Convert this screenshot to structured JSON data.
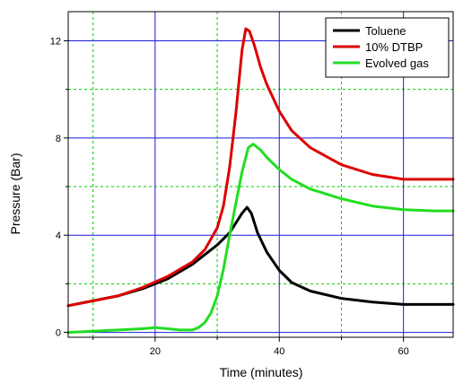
{
  "chart_data": {
    "type": "line",
    "title": "",
    "xlabel": "Time (minutes)",
    "ylabel": "Pressure (Bar)",
    "xlim": [
      6,
      68
    ],
    "ylim": [
      -0.2,
      13.2
    ],
    "grid": true,
    "legend_position": "top-right",
    "x_major_ticks": [
      20,
      40,
      60
    ],
    "x_minor_ticks": [
      10,
      30,
      50
    ],
    "y_major_ticks": [
      0,
      4,
      8,
      12
    ],
    "y_minor_ticks": [
      2,
      6,
      10
    ],
    "x_tick_labels": [
      "20",
      "40",
      "60"
    ],
    "y_tick_labels": [
      "0",
      "4",
      "8",
      "12"
    ],
    "colors": {
      "major_grid": "#1a1adc",
      "minor_grid": "#00cc00",
      "axes": "#000000"
    },
    "series": [
      {
        "name": "Toluene",
        "color": "#000000",
        "x": [
          6,
          10,
          14,
          18,
          22,
          26,
          28,
          30,
          32,
          33,
          34,
          34.8,
          35.5,
          36.5,
          38,
          40,
          42,
          45,
          50,
          55,
          60,
          65,
          68
        ],
        "y": [
          1.1,
          1.3,
          1.5,
          1.8,
          2.2,
          2.8,
          3.2,
          3.6,
          4.1,
          4.5,
          4.9,
          5.15,
          4.9,
          4.1,
          3.3,
          2.55,
          2.05,
          1.7,
          1.4,
          1.25,
          1.15,
          1.15,
          1.15
        ]
      },
      {
        "name": "10% DTBP",
        "color": "#dd0000",
        "x": [
          6,
          10,
          14,
          18,
          22,
          26,
          28,
          30,
          31,
          32,
          33,
          34,
          34.6,
          35.2,
          36,
          37,
          38,
          40,
          42,
          45,
          50,
          55,
          60,
          65,
          68
        ],
        "y": [
          1.1,
          1.3,
          1.5,
          1.85,
          2.3,
          2.9,
          3.4,
          4.3,
          5.2,
          6.8,
          9.0,
          11.6,
          12.5,
          12.4,
          11.8,
          10.9,
          10.2,
          9.1,
          8.3,
          7.6,
          6.9,
          6.5,
          6.3,
          6.3,
          6.3
        ]
      },
      {
        "name": "Evolved gas",
        "color": "#22dd22",
        "x": [
          6,
          10,
          14,
          18,
          20,
          22,
          24,
          26,
          27,
          28,
          29,
          30,
          31,
          32,
          33,
          34,
          35,
          35.8,
          37,
          38,
          40,
          42,
          45,
          50,
          55,
          60,
          65,
          68
        ],
        "y": [
          0.0,
          0.05,
          0.1,
          0.15,
          0.2,
          0.15,
          0.1,
          0.1,
          0.2,
          0.4,
          0.8,
          1.5,
          2.6,
          4.0,
          5.3,
          6.6,
          7.6,
          7.75,
          7.5,
          7.2,
          6.7,
          6.3,
          5.9,
          5.5,
          5.2,
          5.05,
          5.0,
          5.0
        ]
      }
    ]
  }
}
